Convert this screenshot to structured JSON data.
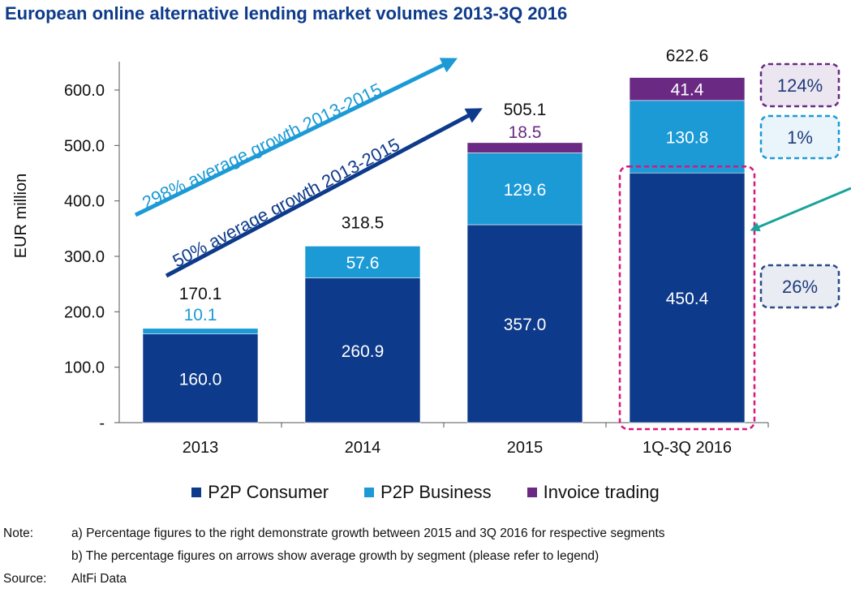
{
  "title": "European online alternative lending market volumes 2013-3Q 2016",
  "colors": {
    "consumer": "#0d3a8a",
    "business": "#1c9ad6",
    "invoice": "#6a2a83",
    "teal": "#19a39a",
    "magenta": "#d6177c",
    "dashed_navy": "#2a4a8a"
  },
  "chart_data": {
    "type": "bar",
    "stacked": true,
    "categories": [
      "2013",
      "2014",
      "2015",
      "1Q-3Q 2016"
    ],
    "series": [
      {
        "name": "P2P Consumer",
        "values": [
          160.0,
          260.9,
          357.0,
          450.4
        ],
        "labels": [
          "160.0",
          "260.9",
          "357.0",
          "450.4"
        ]
      },
      {
        "name": "P2P Business",
        "values": [
          10.1,
          57.6,
          129.6,
          130.8
        ],
        "labels": [
          "10.1",
          "57.6",
          "129.6",
          "130.8"
        ]
      },
      {
        "name": "Invoice trading",
        "values": [
          0,
          0,
          18.5,
          41.4
        ],
        "labels": [
          "",
          "",
          "18.5",
          "41.4"
        ]
      }
    ],
    "totals": [
      "170.1",
      "318.5",
      "505.1",
      "622.6"
    ],
    "ylabel": "EUR million",
    "ylim": [
      0,
      600
    ],
    "yticks": [
      0,
      100,
      200,
      300,
      400,
      500,
      600
    ],
    "ytick_labels": [
      "-",
      "100.0",
      "200.0",
      "300.0",
      "400.0",
      "500.0",
      "600.0"
    ],
    "annotations": {
      "arrow_business": "298% average growth 2013-2015",
      "arrow_consumer": "50% average growth 2013-2015",
      "badge_invoice": "124%",
      "badge_business": "1%",
      "badge_consumer": "26%"
    },
    "legend_position": "bottom"
  },
  "notes": {
    "note_label": "Note:",
    "note_a": "a) Percentage figures to the right demonstrate growth between 2015 and 3Q 2016 for respective segments",
    "note_b": "b) The percentage figures on arrows show average growth by segment (please refer to legend)",
    "source_label": "Source:",
    "source_value": "AltFi Data"
  }
}
